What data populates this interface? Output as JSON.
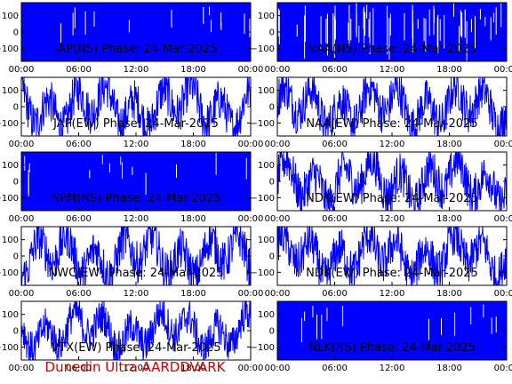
{
  "colors": {
    "signal": "#0000ff",
    "footer": "#cc0000",
    "axis": "#000000"
  },
  "footer": "Dunedin Ultra AARDDVARK",
  "chart_data": [
    {
      "type": "line",
      "title": "JAP(NS) Phase: 24-Mar-2025",
      "x_ticks": [
        "00:00",
        "06:00",
        "12:00",
        "18:00",
        "00:00"
      ],
      "y_ticks": [
        "100",
        "0",
        "-100"
      ],
      "ylim": [
        -180,
        180
      ],
      "xlim_hours": [
        0,
        24
      ],
      "pattern": "dense"
    },
    {
      "type": "line",
      "title": "NAA(NS) Phase: 24-Mar-2025",
      "x_ticks": [
        "00:00",
        "06:00",
        "12:00",
        "18:00",
        "00:00"
      ],
      "y_ticks": [
        "100",
        "0",
        "-100"
      ],
      "ylim": [
        -180,
        180
      ],
      "xlim_hours": [
        0,
        24
      ],
      "pattern": "dense-gaps"
    },
    {
      "type": "line",
      "title": "JAP(EW) Phase: 24-Mar-2025",
      "x_ticks": [
        "00:00",
        "06:00",
        "12:00",
        "18:00",
        "00:00"
      ],
      "y_ticks": [
        "100",
        "0",
        "-100"
      ],
      "ylim": [
        -180,
        180
      ],
      "xlim_hours": [
        0,
        24
      ],
      "pattern": "wavy"
    },
    {
      "type": "line",
      "title": "NAA(EW) Phase: 24-Mar-2025",
      "x_ticks": [
        "00:00",
        "06:00",
        "12:00",
        "18:00",
        "00:00"
      ],
      "y_ticks": [
        "100",
        "0",
        "-100"
      ],
      "ylim": [
        -180,
        180
      ],
      "xlim_hours": [
        0,
        24
      ],
      "pattern": "wavy"
    },
    {
      "type": "line",
      "title": "NPM(NS) Phase: 24-Mar-2025",
      "x_ticks": [
        "00:00",
        "06:00",
        "12:00",
        "18:00",
        "00:00"
      ],
      "y_ticks": [
        "100",
        "0",
        "-100"
      ],
      "ylim": [
        -180,
        180
      ],
      "xlim_hours": [
        0,
        24
      ],
      "pattern": "dense"
    },
    {
      "type": "line",
      "title": "NDK(EW) Phase: 24-Mar-2025",
      "x_ticks": [
        "00:00",
        "06:00",
        "12:00",
        "18:00",
        "00:00"
      ],
      "y_ticks": [
        "100",
        "0",
        "-100"
      ],
      "ylim": [
        -180,
        180
      ],
      "xlim_hours": [
        0,
        24
      ],
      "pattern": "wavy"
    },
    {
      "type": "line",
      "title": "NWC(EW) Phase: 24-Mar-2025",
      "x_ticks": [
        "00:00",
        "06:00",
        "12:00",
        "18:00",
        "00:00"
      ],
      "y_ticks": [
        "100",
        "0",
        "-100"
      ],
      "ylim": [
        -180,
        180
      ],
      "xlim_hours": [
        0,
        24
      ],
      "pattern": "wavy"
    },
    {
      "type": "line",
      "title": "NDK(EW) Phase: 24-Mar-2025",
      "x_ticks": [
        "00:00",
        "06:00",
        "12:00",
        "18:00",
        "00:00"
      ],
      "y_ticks": [
        "100",
        "0",
        "-100"
      ],
      "ylim": [
        -180,
        180
      ],
      "xlim_hours": [
        0,
        24
      ],
      "pattern": "wavy"
    },
    {
      "type": "line",
      "title": "VTX(EW) Phase: 24-Mar-2025",
      "x_ticks": [
        "00:00",
        "06:00",
        "12:00",
        "18:00",
        "00:00"
      ],
      "y_ticks": [
        "100",
        "0",
        "-100"
      ],
      "ylim": [
        -180,
        180
      ],
      "xlim_hours": [
        0,
        24
      ],
      "pattern": "wavy-low"
    },
    {
      "type": "line",
      "title": "NLK(NS) Phase: 24-Mar-2025",
      "x_ticks": [
        "00:00",
        "06:00",
        "12:00",
        "18:00",
        "00:00"
      ],
      "y_ticks": [
        "100",
        "0",
        "-100"
      ],
      "ylim": [
        -180,
        180
      ],
      "xlim_hours": [
        0,
        24
      ],
      "pattern": "dense"
    }
  ]
}
